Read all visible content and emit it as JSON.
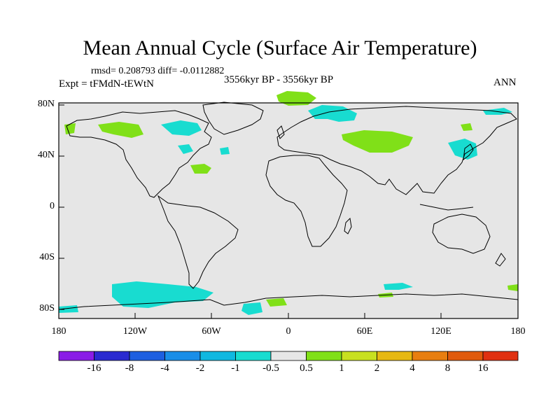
{
  "title": "Mean Annual Cycle (Surface Air Temperature)",
  "stats": "rmsd= 0.208793 diff= -0.0112882",
  "experiment": "Expt = tFMdN-tEWtN",
  "period": "3556kyr BP - 3556kyr BP",
  "season": "ANN",
  "lat_labels": [
    "80N",
    "40N",
    "0",
    "40S",
    "80S"
  ],
  "lon_labels": [
    "180",
    "120W",
    "60W",
    "0",
    "60E",
    "120E",
    "180"
  ],
  "colorbar": {
    "labels": [
      "-16",
      "-8",
      "-4",
      "-2",
      "-1",
      "-0.5",
      "0.5",
      "1",
      "2",
      "4",
      "8",
      "16"
    ],
    "colors": [
      "#8a1ce6",
      "#2a2ad0",
      "#1e5fe0",
      "#1a8ee8",
      "#10b8e0",
      "#18dcd0",
      "#e6e6e6",
      "#80e018",
      "#c8e020",
      "#e6b812",
      "#e87e10",
      "#e05a0c",
      "#e03010"
    ]
  },
  "colors": {
    "background_field": "#e6e6e6",
    "cyan_anomaly": "#18dcd0",
    "green_anomaly": "#80e018",
    "coastline": "#000000"
  }
}
